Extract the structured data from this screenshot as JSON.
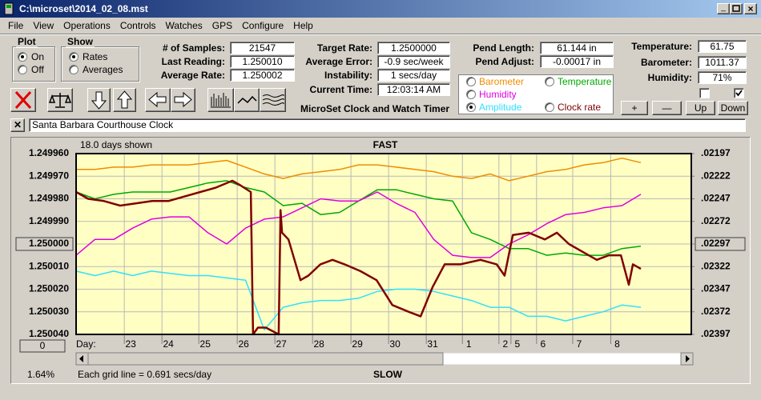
{
  "window": {
    "title": "C:\\microset\\2014_02_08.mst"
  },
  "menu": [
    "File",
    "View",
    "Operations",
    "Controls",
    "Watches",
    "GPS",
    "Configure",
    "Help"
  ],
  "plot": {
    "title": "Plot",
    "options": [
      "On",
      "Off"
    ],
    "selected": 0
  },
  "show": {
    "title": "Show",
    "options": [
      "Rates",
      "Averages"
    ],
    "selected": 0
  },
  "readings": [
    {
      "label": "# of Samples:",
      "value": "21547"
    },
    {
      "label": "Last Reading:",
      "value": "1.250010"
    },
    {
      "label": "Average Rate:",
      "value": "1.250002"
    }
  ],
  "timing": [
    {
      "label": "Target Rate:",
      "value": "1.2500000"
    },
    {
      "label": "Average Error:",
      "value": "-0.9 sec/week"
    },
    {
      "label": "Instability:",
      "value": "1 secs/day"
    },
    {
      "label": "Current Time:",
      "value": "12:03:14 AM"
    }
  ],
  "pendulum": [
    {
      "label": "Pend Length:",
      "value": "61.144 in"
    },
    {
      "label": "Pend Adjust:",
      "value": "-0.00017 in"
    }
  ],
  "environment": [
    {
      "label": "Temperature:",
      "value": "61.75"
    },
    {
      "label": "Barometer:",
      "value": "1011.37"
    },
    {
      "label": "Humidity:",
      "value": "71%"
    }
  ],
  "buttons": [
    "+",
    "—",
    "Up",
    "Down"
  ],
  "app_name": "MicroSet Clock and Watch Timer",
  "clock_name": "Santa Barbara Courthouse Clock",
  "chart_data": {
    "type": "line",
    "title": "FAST",
    "bottom_label": "SLOW",
    "days_shown": "18.0 days shown",
    "x_label": "Day:",
    "note": "Each grid line = 0.691 secs/day",
    "status": "1.64%",
    "offset_button": "0",
    "grid": true,
    "selected_series": 3,
    "xlim": [
      0,
      16.34
    ],
    "xticks": [
      {
        "value": 1.28,
        "label": "23"
      },
      {
        "value": 2.28,
        "label": "24"
      },
      {
        "value": 3.26,
        "label": "25"
      },
      {
        "value": 4.28,
        "label": "26"
      },
      {
        "value": 5.28,
        "label": "27"
      },
      {
        "value": 6.28,
        "label": "28"
      },
      {
        "value": 7.3,
        "label": "29"
      },
      {
        "value": 8.3,
        "label": "30"
      },
      {
        "value": 9.3,
        "label": "31"
      },
      {
        "value": 10.26,
        "label": "1"
      },
      {
        "value": 11.23,
        "label": "2"
      },
      {
        "value": 11.55,
        "label": "5"
      },
      {
        "value": 12.23,
        "label": "6"
      },
      {
        "value": 13.19,
        "label": "7"
      },
      {
        "value": 14.2,
        "label": "8"
      }
    ],
    "ylim": [
      1.25004,
      1.24996
    ],
    "yticks": [
      {
        "value": 1.24996,
        "label": "1.249960"
      },
      {
        "value": 1.24997,
        "label": "1.249970"
      },
      {
        "value": 1.24998,
        "label": "1.249980"
      },
      {
        "value": 1.24999,
        "label": "1.249990"
      },
      {
        "value": 1.25,
        "label": "1.250000"
      },
      {
        "value": 1.25001,
        "label": "1.250010"
      },
      {
        "value": 1.25002,
        "label": "1.250020"
      },
      {
        "value": 1.25003,
        "label": "1.250030"
      },
      {
        "value": 1.25004,
        "label": "1.250040"
      }
    ],
    "y2lim": [
      0.02397,
      0.02197
    ],
    "y2ticks": [
      {
        "value": 0.02197,
        "label": ".02197"
      },
      {
        "value": 0.02222,
        "label": ".02222"
      },
      {
        "value": 0.02247,
        "label": ".02247"
      },
      {
        "value": 0.02272,
        "label": ".02272"
      },
      {
        "value": 0.02297,
        "label": ".02297"
      },
      {
        "value": 0.02322,
        "label": ".02322"
      },
      {
        "value": 0.02347,
        "label": ".02347"
      },
      {
        "value": 0.02372,
        "label": ".02372"
      },
      {
        "value": 0.02397,
        "label": ".02397"
      }
    ],
    "x": [
      0,
      0.5,
      1,
      1.5,
      2,
      2.5,
      3,
      3.5,
      4,
      4.5,
      5,
      5.5,
      6,
      6.5,
      7,
      7.5,
      8,
      8.5,
      9,
      9.5,
      10,
      10.5,
      11,
      11.5,
      12,
      12.5,
      13,
      13.5,
      14,
      14.5,
      15
    ],
    "series": [
      {
        "name": "Barometer",
        "color": "#f08c00",
        "values": [
          1.249967,
          1.249967,
          1.249966,
          1.249966,
          1.249965,
          1.249965,
          1.249965,
          1.249964,
          1.249963,
          1.249966,
          1.249969,
          1.249971,
          1.249969,
          1.249968,
          1.249967,
          1.249965,
          1.249965,
          1.249966,
          1.249967,
          1.249968,
          1.24997,
          1.249971,
          1.249969,
          1.249972,
          1.24997,
          1.249968,
          1.249967,
          1.249965,
          1.249964,
          1.249962,
          1.249964
        ]
      },
      {
        "name": "Temperature",
        "color": "#00a800",
        "values": [
          1.249977,
          1.24998,
          1.249978,
          1.249977,
          1.249977,
          1.249977,
          1.249975,
          1.249973,
          1.249972,
          1.249975,
          1.249977,
          1.249983,
          1.249982,
          1.249987,
          1.249986,
          1.249981,
          1.249976,
          1.249976,
          1.249978,
          1.24998,
          1.249981,
          1.249995,
          1.249998,
          1.250002,
          1.250002,
          1.250005,
          1.250004,
          1.250005,
          1.250005,
          1.250002,
          1.250001
        ]
      },
      {
        "name": "Humidity",
        "color": "#e000e0",
        "values": [
          1.250005,
          1.249998,
          1.249998,
          1.249993,
          1.249989,
          1.249988,
          1.249988,
          1.249995,
          1.25,
          1.249993,
          1.249989,
          1.249988,
          1.249984,
          1.24998,
          1.249981,
          1.249981,
          1.249977,
          1.249982,
          1.249986,
          1.249998,
          1.250005,
          1.250006,
          1.250006,
          1.25,
          1.249996,
          1.249991,
          1.249987,
          1.249986,
          1.249984,
          1.249983,
          1.249978
        ]
      },
      {
        "name": "Amplitude",
        "color": "#30e0ff",
        "values": [
          1.250012,
          1.250014,
          1.250012,
          1.250014,
          1.250012,
          1.250013,
          1.250014,
          1.250014,
          1.250015,
          1.250016,
          1.250038,
          1.250028,
          1.250026,
          1.250025,
          1.250025,
          1.250024,
          1.250021,
          1.25002,
          1.25002,
          1.250021,
          1.250023,
          1.250025,
          1.250028,
          1.250028,
          1.250032,
          1.250032,
          1.250034,
          1.250032,
          1.25003,
          1.250027,
          1.250028
        ]
      },
      {
        "name": "Clock rate",
        "color": "#800000",
        "x": [
          0,
          0.32,
          0.74,
          1.17,
          1.6,
          2.02,
          2.45,
          2.87,
          3.3,
          3.72,
          4.15,
          4.36,
          4.64,
          4.7,
          4.83,
          5.04,
          5.38,
          5.43,
          5.47,
          5.64,
          5.96,
          6.17,
          6.49,
          6.81,
          7.13,
          7.55,
          7.98,
          8.4,
          8.83,
          9.15,
          9.47,
          9.79,
          10.21,
          10.74,
          11.17,
          11.38,
          11.6,
          12.02,
          12.45,
          12.77,
          13.09,
          13.51,
          13.83,
          14.15,
          14.47,
          14.68,
          14.79,
          15
        ],
        "values": [
          1.249977,
          1.24998,
          1.249981,
          1.249983,
          1.249982,
          1.249981,
          1.249981,
          1.249979,
          1.249977,
          1.249975,
          1.249972,
          1.249974,
          1.249977,
          1.25004,
          1.250037,
          1.250037,
          1.25004,
          1.249985,
          1.249995,
          1.249998,
          1.250016,
          1.250014,
          1.250009,
          1.250007,
          1.250009,
          1.250012,
          1.250016,
          1.250027,
          1.25003,
          1.250032,
          1.250019,
          1.250009,
          1.250009,
          1.250007,
          1.250009,
          1.250014,
          1.249996,
          1.249995,
          1.249998,
          1.249995,
          1.25,
          1.250004,
          1.250007,
          1.250005,
          1.250005,
          1.250018,
          1.250009,
          1.250011
        ]
      }
    ]
  }
}
